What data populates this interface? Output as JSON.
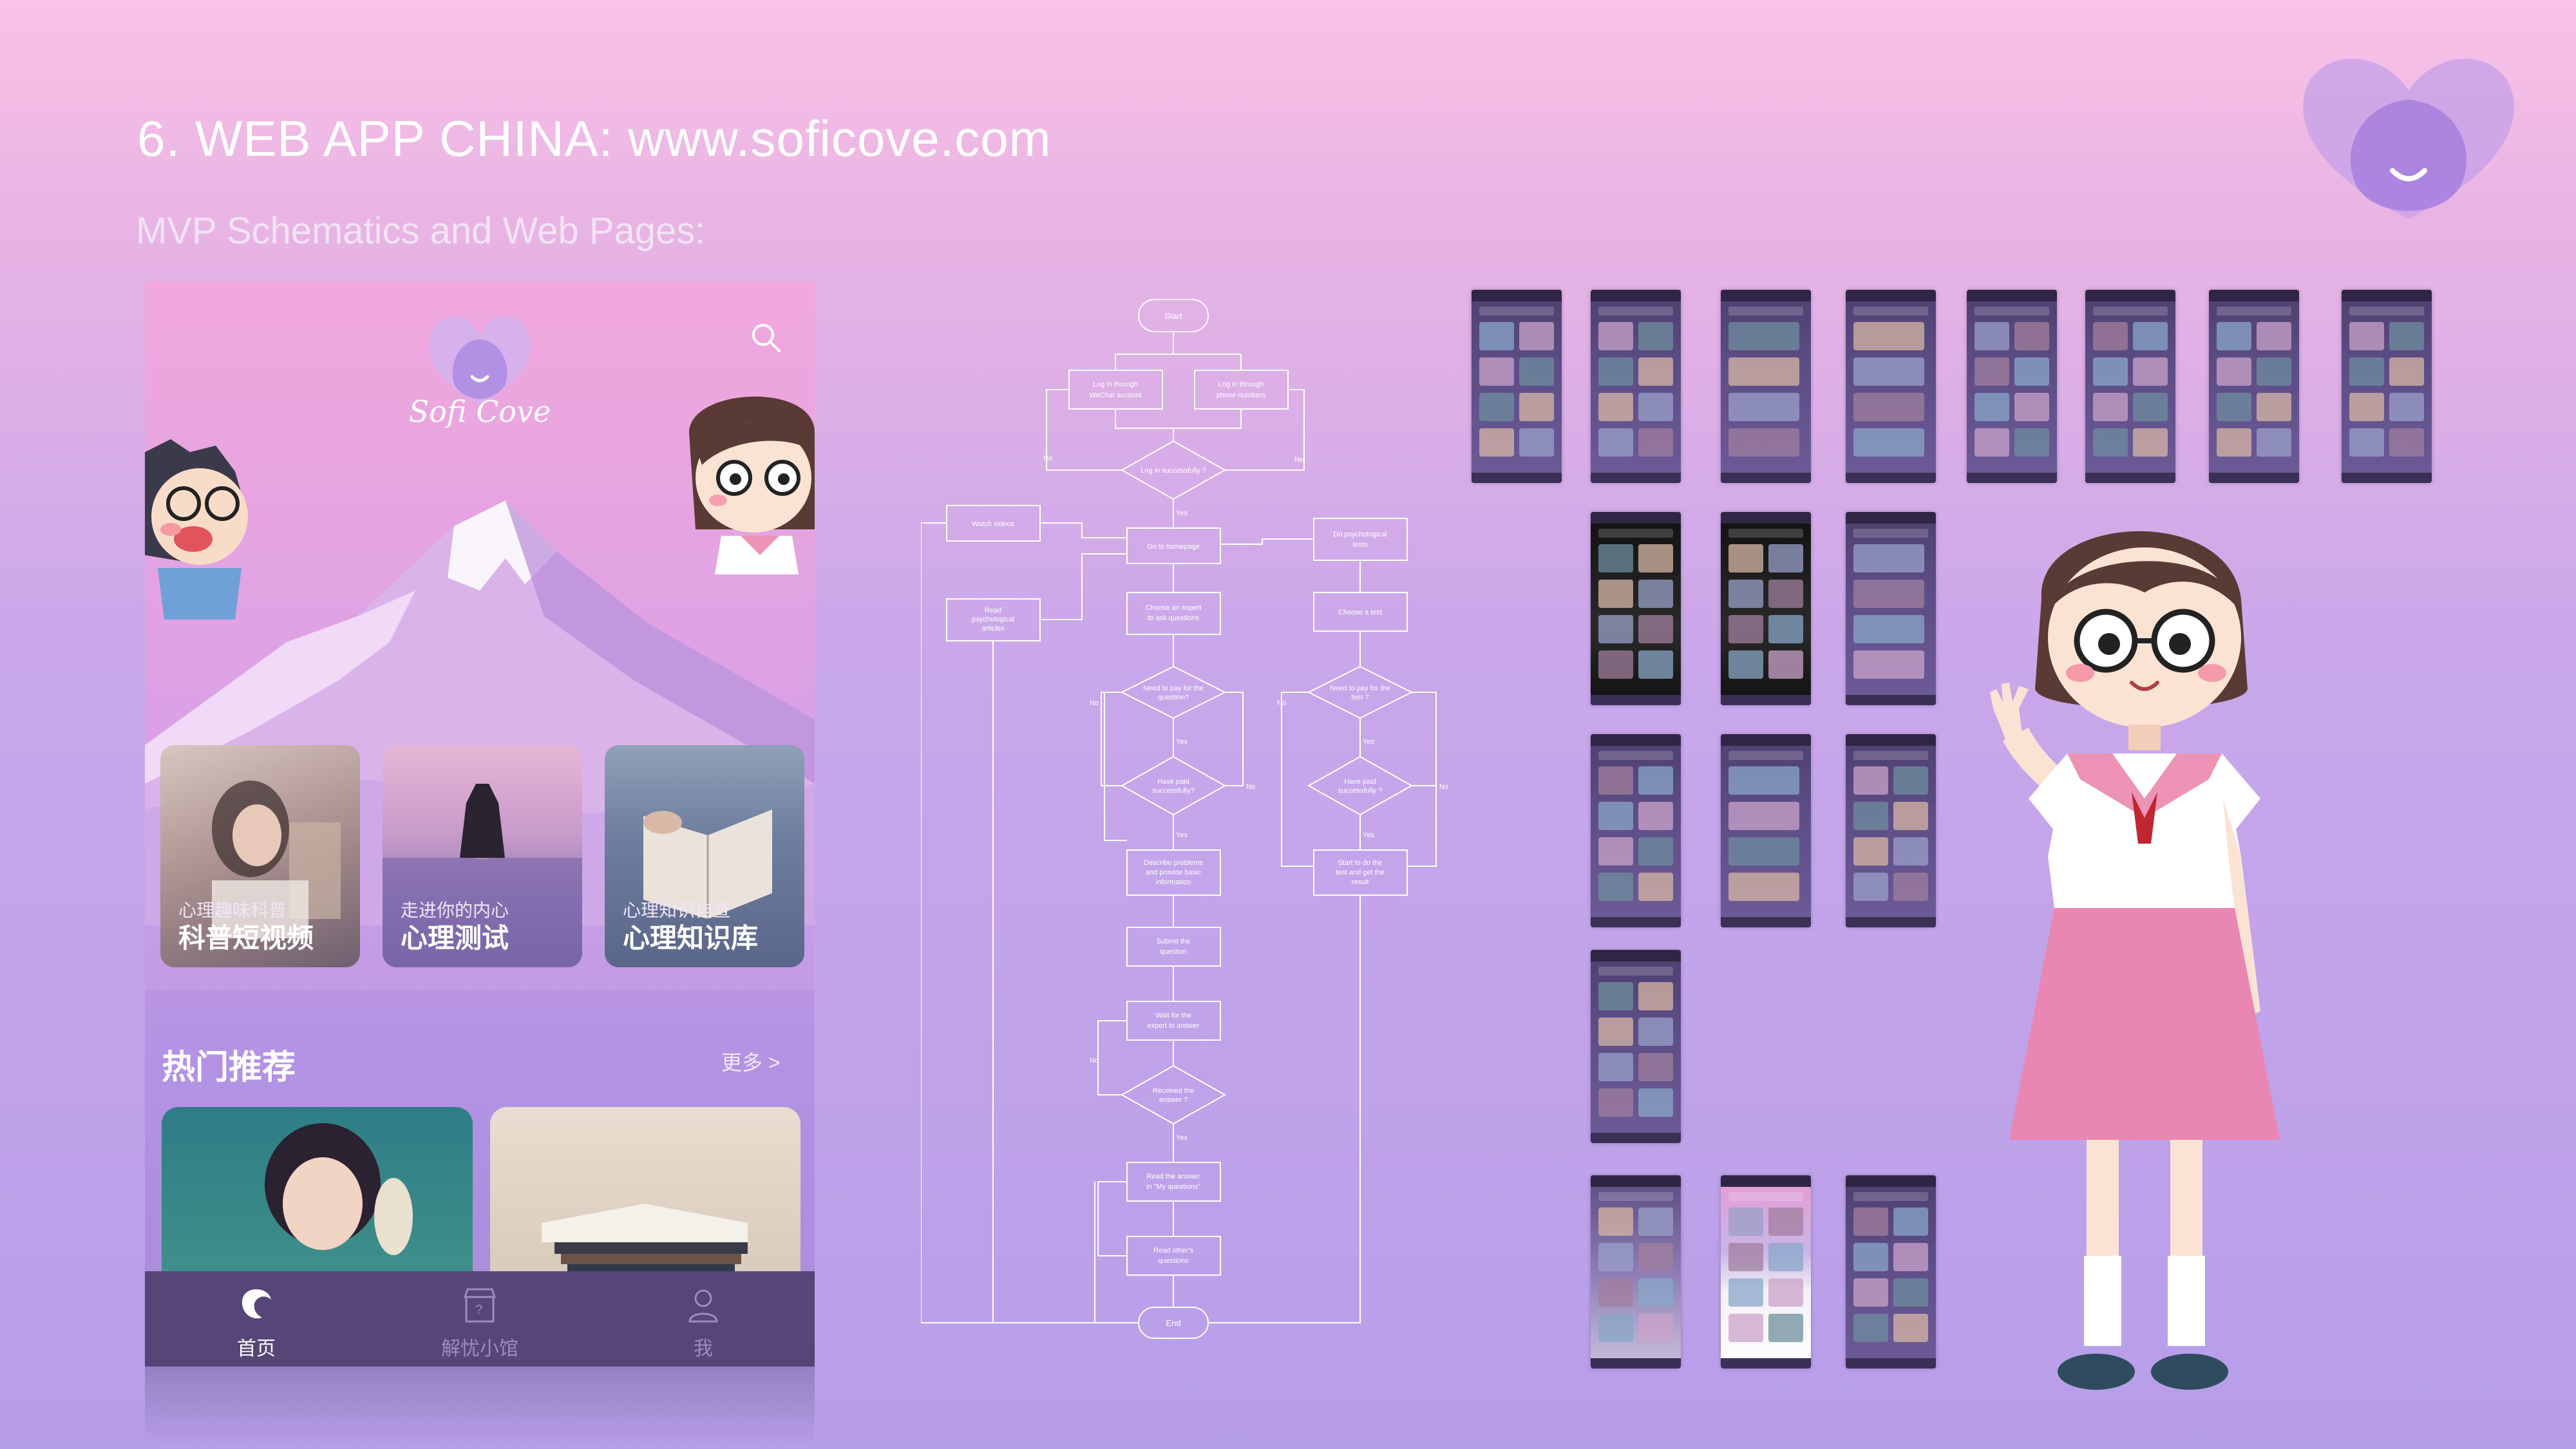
{
  "header": {
    "title": "6. WEB APP CHINA: www.soficove.com",
    "subtitle": "MVP Schematics and Web Pages:"
  },
  "phone": {
    "brand": "Sofi Cove",
    "cards": [
      {
        "caption": "心理趣味科普",
        "label": "科普短视频"
      },
      {
        "caption": "走进你的内心",
        "label": "心理测试"
      },
      {
        "caption": "心理知识自查",
        "label": "心理知识库"
      }
    ],
    "section_title": "热门推荐",
    "more_label": "更多 >",
    "tabs": [
      {
        "label": "首页",
        "icon": "home-icon"
      },
      {
        "label": "解忧小馆",
        "icon": "shop-icon"
      },
      {
        "label": "我",
        "icon": "user-icon"
      }
    ]
  },
  "flowchart": {
    "start": "Start",
    "wechat": [
      "Log in through",
      "WeChat account"
    ],
    "phone_login": [
      "Log in through",
      "phone numbers"
    ],
    "login_ok": "Log in successfully ?",
    "watch": "Watch videos",
    "homepage": "Go to homepage",
    "do_tests": [
      "Do psychological",
      "tests"
    ],
    "read_articles": [
      "Read",
      "psychological",
      "articles"
    ],
    "choose_expert": [
      "Choose an expert",
      "to ask questions"
    ],
    "choose_test": "Choose a test",
    "pay_question": [
      "Need to pay for the",
      "question?"
    ],
    "pay_test": [
      "Need to pay for the",
      "test ?"
    ],
    "paid1": [
      "Have paid",
      "successfully?"
    ],
    "paid2": [
      "Have paid",
      "successfully ?"
    ],
    "describe": [
      "Describe problems",
      "and provide basic",
      "information"
    ],
    "start_test": [
      "Start to do the",
      "test and get the",
      "result"
    ],
    "submit": [
      "Submit the",
      "question"
    ],
    "wait": [
      "Wait for the",
      "expert to answer"
    ],
    "received": [
      "Received the",
      "answer ?"
    ],
    "read_answer": [
      "Read the answer",
      "in \"My questions\""
    ],
    "read_others": [
      "Read other's",
      "questions"
    ],
    "end": "End",
    "yes": "Yes",
    "no": "No"
  },
  "colors": {
    "tabbar": "#564677",
    "accent": "#8e6fd0",
    "pink": "#f9c2e6"
  }
}
